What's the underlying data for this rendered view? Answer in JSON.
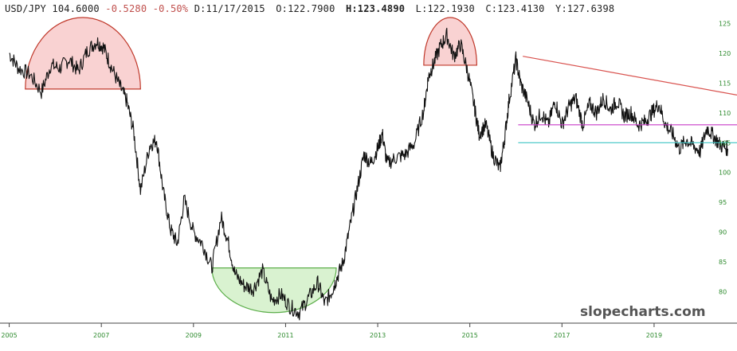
{
  "header": {
    "symbol": "USD/JPY",
    "last": "104.6000",
    "change": "-0.5280",
    "change_pct": "-0.50%",
    "date_label": "D:",
    "date": "11/17/2015",
    "open_label": "O:",
    "open": "122.7900",
    "high_label": "H:",
    "high": "123.4890",
    "low_label": "L:",
    "low": "122.1930",
    "close_label": "C:",
    "close": "123.4130",
    "ytd_label": "Y:",
    "ytd": "127.6398"
  },
  "watermark": "slopecharts.com",
  "colors": {
    "price": "#111111",
    "axis_text": "#2e8b2e",
    "red_shape_fill": "#f9d2d2",
    "red_shape_stroke": "#c0392b",
    "green_shape_fill": "#d9f2d0",
    "green_shape_stroke": "#5cae4a",
    "trendline": "#d9534f",
    "magenta_line": "#c83cc8",
    "cyan_line": "#3ec4c4",
    "negative": "#c0504d"
  },
  "chart_data": {
    "type": "line",
    "x_ticks": [
      "2005",
      "2007",
      "2009",
      "2011",
      "2013",
      "2015",
      "2017",
      "2019"
    ],
    "y_ticks": [
      80,
      85,
      90,
      95,
      100,
      105,
      110,
      115,
      120,
      125
    ],
    "xlim": [
      2004.8,
      2020.8
    ],
    "ylim": [
      75,
      126
    ],
    "grid": false,
    "series": [
      {
        "x": [
          2005.0,
          2005.2,
          2005.45,
          2005.7,
          2005.9,
          2006.1,
          2006.3,
          2006.5,
          2006.7,
          2006.9,
          2007.05,
          2007.2,
          2007.4,
          2007.55,
          2007.7,
          2007.85,
          2008.05,
          2008.2,
          2008.35,
          2008.5,
          2008.65,
          2008.8,
          2009.0,
          2009.2,
          2009.4,
          2009.6,
          2009.75,
          2009.9,
          2010.1,
          2010.3,
          2010.5,
          2010.7,
          2010.9,
          2011.1,
          2011.3,
          2011.5,
          2011.7,
          2011.85,
          2012.0,
          2012.1,
          2012.25,
          2012.4,
          2012.55,
          2012.7,
          2012.85,
          2013.0,
          2013.1,
          2013.2,
          2013.4,
          2013.6,
          2013.8,
          2014.0,
          2014.1,
          2014.2,
          2014.35,
          2014.5,
          2014.65,
          2014.8,
          2014.95,
          2015.1,
          2015.2,
          2015.35,
          2015.5,
          2015.65,
          2015.75,
          2015.85,
          2016.0,
          2016.1,
          2016.25,
          2016.4,
          2016.55,
          2016.7,
          2016.85,
          2017.0,
          2017.15,
          2017.3,
          2017.45,
          2017.6,
          2017.75,
          2017.9,
          2018.05,
          2018.2,
          2018.35,
          2018.5,
          2018.65,
          2018.8,
          2018.95,
          2019.1,
          2019.25,
          2019.4,
          2019.55,
          2019.7,
          2019.85,
          2020.0,
          2020.15,
          2020.3,
          2020.45,
          2020.6
        ],
        "values": [
          120.0,
          117.5,
          116.5,
          113.5,
          118.0,
          117.5,
          119.0,
          117.0,
          120.5,
          122.0,
          121.0,
          118.0,
          114.5,
          112.0,
          107.0,
          97.0,
          104.5,
          105.5,
          96.5,
          90.5,
          88.0,
          95.5,
          90.0,
          88.0,
          84.0,
          92.5,
          88.5,
          83.0,
          81.0,
          80.5,
          83.5,
          78.5,
          79.5,
          77.5,
          76.5,
          79.0,
          81.5,
          78.0,
          80.0,
          82.0,
          85.0,
          91.0,
          97.0,
          103.0,
          101.5,
          104.0,
          106.5,
          101.5,
          102.5,
          103.0,
          105.0,
          110.5,
          116.0,
          118.0,
          121.0,
          123.0,
          119.5,
          121.5,
          117.0,
          111.0,
          106.5,
          108.0,
          103.0,
          100.5,
          105.5,
          112.0,
          119.0,
          115.0,
          112.0,
          108.0,
          110.0,
          108.0,
          112.0,
          108.0,
          111.0,
          112.5,
          108.0,
          111.5,
          110.0,
          112.5,
          110.5,
          112.0,
          109.5,
          110.0,
          108.0,
          108.5,
          110.0,
          111.5,
          108.0,
          106.5,
          104.0,
          105.5,
          104.5,
          103.5,
          107.5,
          106.0,
          104.5,
          104.0
        ]
      }
    ],
    "annotations": [
      {
        "type": "half-disc",
        "color": "red",
        "x_start": 2005.35,
        "x_end": 2007.85,
        "y_base": 114.0,
        "y_top": 126.0
      },
      {
        "type": "half-disc",
        "color": "red",
        "x_start": 2014.0,
        "x_end": 2015.15,
        "y_base": 118.0,
        "y_top": 126.0
      },
      {
        "type": "half-disc-inverted",
        "color": "green",
        "x_start": 2009.4,
        "x_end": 2012.1,
        "y_top": 84.0,
        "y_bottom": 76.5
      },
      {
        "type": "trendline",
        "color": "red",
        "x_start": 2016.15,
        "y_start": 119.5,
        "x_end": 2020.8,
        "y_end": 113.0
      },
      {
        "type": "hline",
        "color": "magenta",
        "x_start": 2016.05,
        "x_end": 2020.8,
        "y": 108.0
      },
      {
        "type": "hline",
        "color": "cyan",
        "x_start": 2016.05,
        "x_end": 2020.8,
        "y": 105.0
      }
    ]
  }
}
